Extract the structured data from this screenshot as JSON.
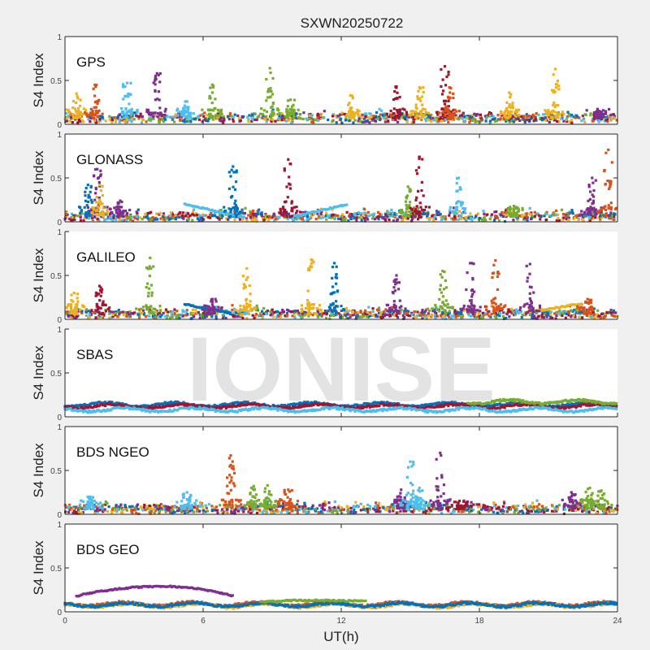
{
  "chart_data": {
    "type": "scatter",
    "title": "SXWN20250722",
    "xlabel": "UT(h)",
    "ylabel": "S4 Index",
    "xlim": [
      0,
      24
    ],
    "ylim": [
      0,
      1
    ],
    "xticks": [
      0,
      6,
      12,
      18,
      24
    ],
    "xtick_labels": [
      "0",
      "6",
      "12",
      "18",
      "24"
    ],
    "yticks": [
      0,
      0.5,
      1
    ],
    "ytick_labels": [
      "0",
      "0.5",
      "1"
    ],
    "watermark": "IONISE",
    "colors": [
      "#0072BD",
      "#D95319",
      "#EDB120",
      "#7E2F8E",
      "#77AC30",
      "#4DBEEE",
      "#A2142F"
    ],
    "panels": [
      {
        "name": "GPS",
        "baseline": 0.07,
        "spikes": [
          {
            "x": 0.5,
            "peak": 0.35,
            "color": 2
          },
          {
            "x": 1.3,
            "peak": 0.45,
            "color": 1
          },
          {
            "x": 2.7,
            "peak": 0.47,
            "color": 5
          },
          {
            "x": 4.0,
            "peak": 0.58,
            "color": 3
          },
          {
            "x": 5.3,
            "peak": 0.26,
            "color": 5
          },
          {
            "x": 6.4,
            "peak": 0.45,
            "color": 4
          },
          {
            "x": 8.9,
            "peak": 0.64,
            "color": 4
          },
          {
            "x": 9.8,
            "peak": 0.28,
            "color": 4
          },
          {
            "x": 12.4,
            "peak": 0.33,
            "color": 2
          },
          {
            "x": 14.4,
            "peak": 0.43,
            "color": 6
          },
          {
            "x": 15.4,
            "peak": 0.42,
            "color": 2
          },
          {
            "x": 16.5,
            "peak": 0.66,
            "color": 6
          },
          {
            "x": 16.7,
            "peak": 0.42,
            "color": 1
          },
          {
            "x": 19.3,
            "peak": 0.36,
            "color": 2
          },
          {
            "x": 21.3,
            "peak": 0.63,
            "color": 2
          },
          {
            "x": 23.2,
            "peak": 0.15,
            "color": 3
          }
        ]
      },
      {
        "name": "GLONASS",
        "baseline": 0.06,
        "spikes": [
          {
            "x": 1.0,
            "peak": 0.42,
            "color": 0
          },
          {
            "x": 1.4,
            "peak": 0.6,
            "color": 3
          },
          {
            "x": 1.5,
            "peak": 0.42,
            "color": 2
          },
          {
            "x": 2.4,
            "peak": 0.24,
            "color": 3
          },
          {
            "x": 7.3,
            "peak": 0.63,
            "color": 0
          },
          {
            "x": 9.7,
            "peak": 0.71,
            "color": 6
          },
          {
            "x": 14.9,
            "peak": 0.4,
            "color": 4
          },
          {
            "x": 15.4,
            "peak": 0.74,
            "color": 6
          },
          {
            "x": 17.1,
            "peak": 0.5,
            "color": 5
          },
          {
            "x": 19.5,
            "peak": 0.18,
            "color": 4
          },
          {
            "x": 22.9,
            "peak": 0.5,
            "color": 3
          },
          {
            "x": 23.6,
            "peak": 0.82,
            "color": 1
          }
        ],
        "arcs": [
          {
            "x0": 5.2,
            "x1": 7.8,
            "y0": 0.2,
            "y1": 0.05,
            "color": 5
          },
          {
            "x0": 9.9,
            "x1": 12.3,
            "y0": 0.06,
            "y1": 0.2,
            "color": 5
          }
        ]
      },
      {
        "name": "GALILEO",
        "baseline": 0.06,
        "spikes": [
          {
            "x": 0.4,
            "peak": 0.3,
            "color": 2
          },
          {
            "x": 1.5,
            "peak": 0.38,
            "color": 6
          },
          {
            "x": 3.7,
            "peak": 0.7,
            "color": 4
          },
          {
            "x": 6.4,
            "peak": 0.23,
            "color": 3
          },
          {
            "x": 7.9,
            "peak": 0.58,
            "color": 2
          },
          {
            "x": 10.7,
            "peak": 0.68,
            "color": 2
          },
          {
            "x": 11.7,
            "peak": 0.64,
            "color": 0
          },
          {
            "x": 14.4,
            "peak": 0.5,
            "color": 3
          },
          {
            "x": 16.4,
            "peak": 0.55,
            "color": 4
          },
          {
            "x": 17.6,
            "peak": 0.64,
            "color": 3
          },
          {
            "x": 18.7,
            "peak": 0.67,
            "color": 1
          },
          {
            "x": 20.2,
            "peak": 0.63,
            "color": 3
          },
          {
            "x": 22.7,
            "peak": 0.23,
            "color": 1
          }
        ],
        "arcs": [
          {
            "x0": 5.2,
            "x1": 7.2,
            "y0": 0.17,
            "y1": 0.07,
            "color": 0
          },
          {
            "x0": 20.0,
            "x1": 22.5,
            "y0": 0.08,
            "y1": 0.18,
            "color": 2
          }
        ]
      },
      {
        "name": "SBAS",
        "baseline": 0.12,
        "bands": [
          {
            "level": 0.14,
            "color": 0
          },
          {
            "level": 0.12,
            "color": 6
          },
          {
            "level": 0.08,
            "color": 5
          },
          {
            "level": 0.17,
            "color": 4,
            "from": 17.5
          }
        ]
      },
      {
        "name": "BDS NGEO",
        "baseline": 0.06,
        "spikes": [
          {
            "x": 1.1,
            "peak": 0.2,
            "color": 5
          },
          {
            "x": 5.3,
            "peak": 0.25,
            "color": 5
          },
          {
            "x": 7.2,
            "peak": 0.67,
            "color": 1
          },
          {
            "x": 8.2,
            "peak": 0.32,
            "color": 4
          },
          {
            "x": 8.8,
            "peak": 0.33,
            "color": 4
          },
          {
            "x": 9.7,
            "peak": 0.28,
            "color": 1
          },
          {
            "x": 14.6,
            "peak": 0.28,
            "color": 3
          },
          {
            "x": 15.0,
            "peak": 0.6,
            "color": 5
          },
          {
            "x": 15.4,
            "peak": 0.3,
            "color": 5
          },
          {
            "x": 16.3,
            "peak": 0.7,
            "color": 3
          },
          {
            "x": 17.2,
            "peak": 0.1,
            "color": 6
          },
          {
            "x": 22.0,
            "peak": 0.25,
            "color": 3
          },
          {
            "x": 22.8,
            "peak": 0.3,
            "color": 4
          },
          {
            "x": 23.3,
            "peak": 0.27,
            "color": 4
          }
        ]
      },
      {
        "name": "BDS GEO",
        "baseline": 0.08,
        "bands": [
          {
            "level": 0.09,
            "color": 1
          },
          {
            "level": 0.07,
            "color": 2
          },
          {
            "level": 0.08,
            "color": 0
          }
        ],
        "arcs": [
          {
            "x0": 0.5,
            "x1": 7.3,
            "y0": 0.18,
            "y1": 0.18,
            "peak": 0.29,
            "peakx": 4.2,
            "color": 3
          },
          {
            "x0": 8.5,
            "x1": 13.1,
            "y0": 0.11,
            "y1": 0.12,
            "peak": 0.13,
            "peakx": 10.5,
            "color": 4
          }
        ]
      }
    ]
  }
}
